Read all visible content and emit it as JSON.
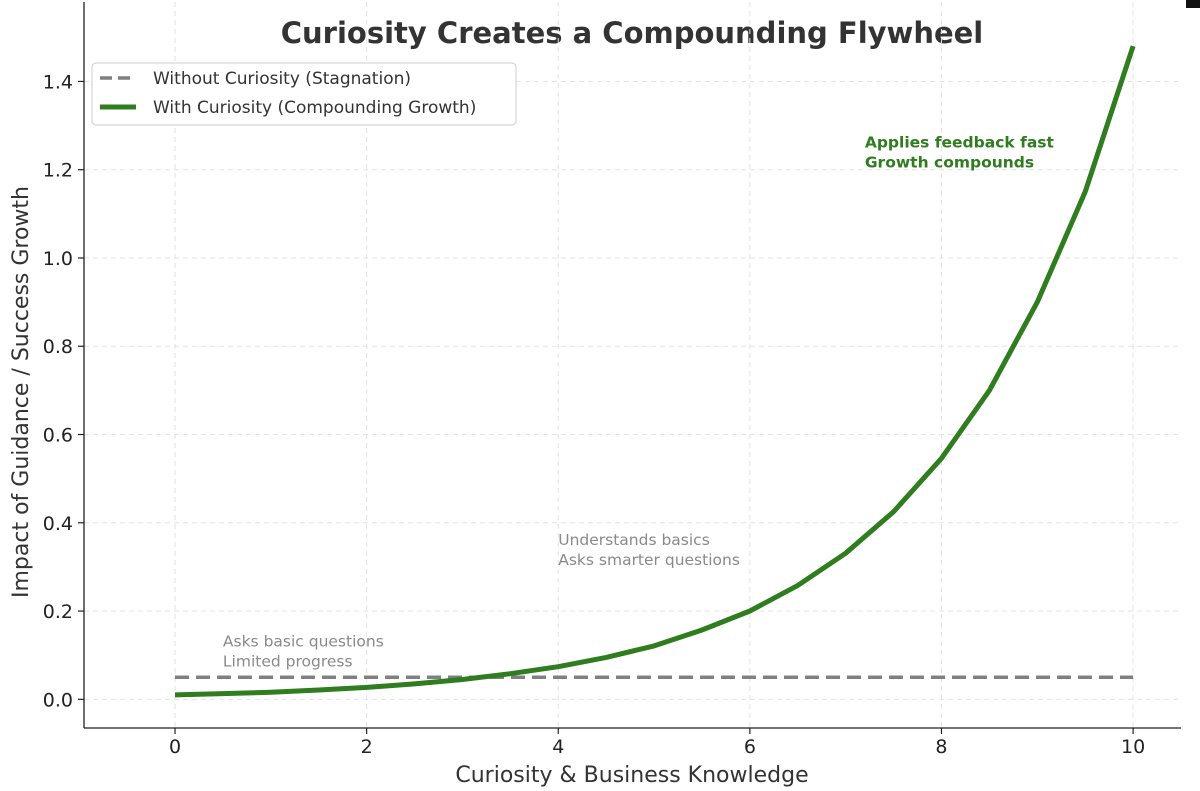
{
  "chart_data": {
    "type": "line",
    "title": "Curiosity Creates a Compounding Flywheel",
    "xlabel": "Curiosity & Business Knowledge",
    "ylabel": "Impact of Guidance / Success Growth",
    "xlim": [
      -0.95,
      10.5
    ],
    "ylim": [
      -0.065,
      1.58
    ],
    "x_ticks": [
      0,
      2,
      4,
      6,
      8,
      10
    ],
    "y_ticks": [
      0.0,
      0.2,
      0.4,
      0.6,
      0.8,
      1.0,
      1.2,
      1.4
    ],
    "grid": true,
    "legend_position": "top-left",
    "series": [
      {
        "name": "Without Curiosity (Stagnation)",
        "style": "dashed",
        "color": "#808080",
        "x": [
          0,
          10
        ],
        "y": [
          0.05,
          0.05
        ]
      },
      {
        "name": "With Curiosity (Compounding Growth)",
        "style": "solid",
        "color": "#2f7d1f",
        "x": [
          0,
          0.5,
          1,
          1.5,
          2,
          2.5,
          3,
          3.5,
          4,
          4.5,
          5,
          5.5,
          6,
          6.5,
          7,
          7.5,
          8,
          8.5,
          9,
          9.5,
          10
        ],
        "y": [
          0.01,
          0.013,
          0.016,
          0.021,
          0.027,
          0.035,
          0.045,
          0.058,
          0.074,
          0.095,
          0.121,
          0.157,
          0.2,
          0.258,
          0.331,
          0.425,
          0.546,
          0.7,
          0.9,
          1.15,
          1.48
        ]
      }
    ],
    "annotations": [
      {
        "x": 0.5,
        "y": 0.12,
        "lines": [
          "Asks basic questions",
          "Limited progress"
        ],
        "color": "#8a8a8a",
        "bold": false
      },
      {
        "x": 4.0,
        "y": 0.35,
        "lines": [
          "Understands basics",
          "Asks smarter questions"
        ],
        "color": "#8a8a8a",
        "bold": false
      },
      {
        "x": 7.2,
        "y": 1.25,
        "lines": [
          "Applies feedback fast",
          "Growth compounds"
        ],
        "color": "#2f7d1f",
        "bold": true
      }
    ]
  }
}
